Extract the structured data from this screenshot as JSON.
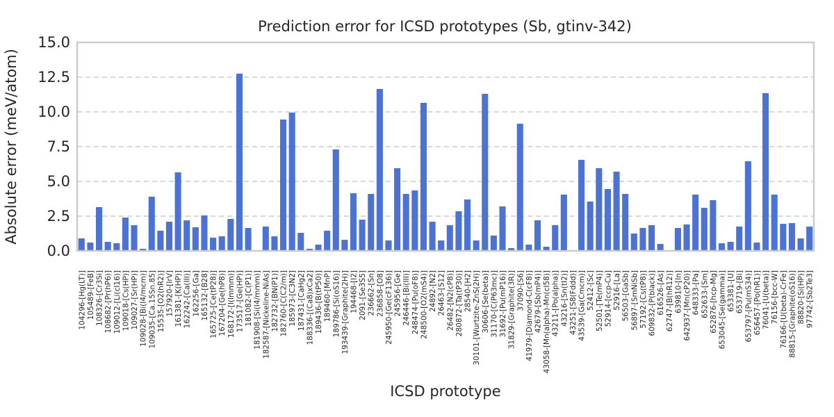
{
  "chart_data": {
    "type": "bar",
    "title": "Prediction error for ICSD prototypes (Sb, gtinv-342)",
    "xlabel": "ICSD prototype",
    "ylabel": "Absolute error (meV/atom)",
    "ylim": [
      0,
      15
    ],
    "yticks": [
      "0.0",
      "2.5",
      "5.0",
      "7.5",
      "10.0",
      "12.5",
      "15.0"
    ],
    "ytick_values": [
      0,
      2.5,
      5,
      7.5,
      10,
      12.5,
      15
    ],
    "grid": "y-dashed",
    "bar_color": "#4c72d4",
    "categories": [
      "104296-[Hg(LT)]",
      "105489-[FeB]",
      "108326-[Cr3Si]",
      "108682-[Pr(hP6)]",
      "109012-[Li(cI16)]",
      "109018-[Cs(HP)]",
      "109027-[Sr(HP)]",
      "109028-[Bi(I4/mcm)]",
      "109035-[Ca.15Sn.85]",
      "15535-[O2(hR2)]",
      "157920-[IrV]",
      "161381-[K(HP)]",
      "162242-[Ca(III)]",
      "162256-[Ga]",
      "165132-[B28]",
      "165725-[Ce(tP28)]",
      "167204-[Ge(hP8)]",
      "168172-[I(Immm)]",
      "173517-[Ge(HP)]",
      "181082-[C(P1)]",
      "181908-[Si(I4/mmm)]",
      "182587-[Nickeline-NiAs]",
      "182732-[BN(P1)]",
      "182760-[C(C2/m)]",
      "185973-[C3N2]",
      "187431-[CaHg2]",
      "188336-[(Ca8)xCa2]",
      "189436-[B(tP50)]",
      "189460-[MnP]",
      "189786-[Si(oS16)]",
      "193439-[Graphite(2H)]",
      "194468-[I2]",
      "2091-[Se3S5]",
      "236662-[Sn]",
      "236858-[O8]",
      "245950-[Ge(cF136)]",
      "245956-[Ge]",
      "246446-[Bi(III)]",
      "248474-[Pu(oF8)]",
      "248500-[O2(mS4)]",
      "24892-[N2]",
      "26463-[S12]",
      "26482-[N2(cP8)]",
      "280872-[Ta(tP30)]",
      "28540-[H2]",
      "30101-[Wurtzite-ZnS(2H)]",
      "30606-[Se(beta)]",
      "31170-[C(P63mc)]",
      "31692-[Pu(mP16)]",
      "31829-[Graphite(3R)]",
      "37090-[S6]",
      "41979-[Diamond-C(cF8)]",
      "42679-[Sb(mP4)]",
      "43058-[Mn(alpha)-Mn(cI58)]",
      "43211-[Po(alpha)]",
      "43216-[Sn(tI2)]",
      "43251-[S8(Fddd)]",
      "43539-[Ga(Cmcm)]",
      "52412-[Sc]",
      "52501-[Te(mP4)]",
      "52914-[ccp-Cu]",
      "52916-[La]",
      "56503-[GaSb]",
      "56897-[SmNiSb]",
      "57192-[Cs(tP8)]",
      "609832-[P(black)]",
      "616526-[As]",
      "62747-[B(hR12)]",
      "639810-[In]",
      "642937-[Mn(cP20)]",
      "648333-[Pa]",
      "652633-[Sm]",
      "652876-[hcp-Mg]",
      "653045-[Se(gamma)]",
      "653381-[U]",
      "653719-[Bi]",
      "653797-[Pu(mS34)]",
      "656457-[Po(hR1)]",
      "76041-[U(beta)]",
      "76156-[bcc-W]",
      "76166-[U(beta)-CrFe]",
      "88815-[Graphite(oS16)]",
      "88820-[Si(HP)]",
      "97742-[Sb2Te3]"
    ],
    "values": [
      0.9,
      0.6,
      3.15,
      0.65,
      0.55,
      2.4,
      1.85,
      0.15,
      3.9,
      1.45,
      2.1,
      5.65,
      2.2,
      1.7,
      2.55,
      0.95,
      1.05,
      2.3,
      12.75,
      1.65,
      0.0,
      1.75,
      1.05,
      9.45,
      9.95,
      1.3,
      0.15,
      0.45,
      1.45,
      7.3,
      0.8,
      4.15,
      2.25,
      4.1,
      11.65,
      0.75,
      5.95,
      4.1,
      4.35,
      10.65,
      2.1,
      0.75,
      1.85,
      2.85,
      3.7,
      0.75,
      11.3,
      1.1,
      3.2,
      0.2,
      9.15,
      0.45,
      2.2,
      0.3,
      1.85,
      4.05,
      0.0,
      6.55,
      3.55,
      5.95,
      4.45,
      5.7,
      4.1,
      1.25,
      1.65,
      1.85,
      0.5,
      0.0,
      1.65,
      1.9,
      4.05,
      3.1,
      3.65,
      0.55,
      0.65,
      1.75,
      6.45,
      0.6,
      11.35,
      4.05,
      1.95,
      2.0,
      0.9,
      1.75
    ]
  }
}
